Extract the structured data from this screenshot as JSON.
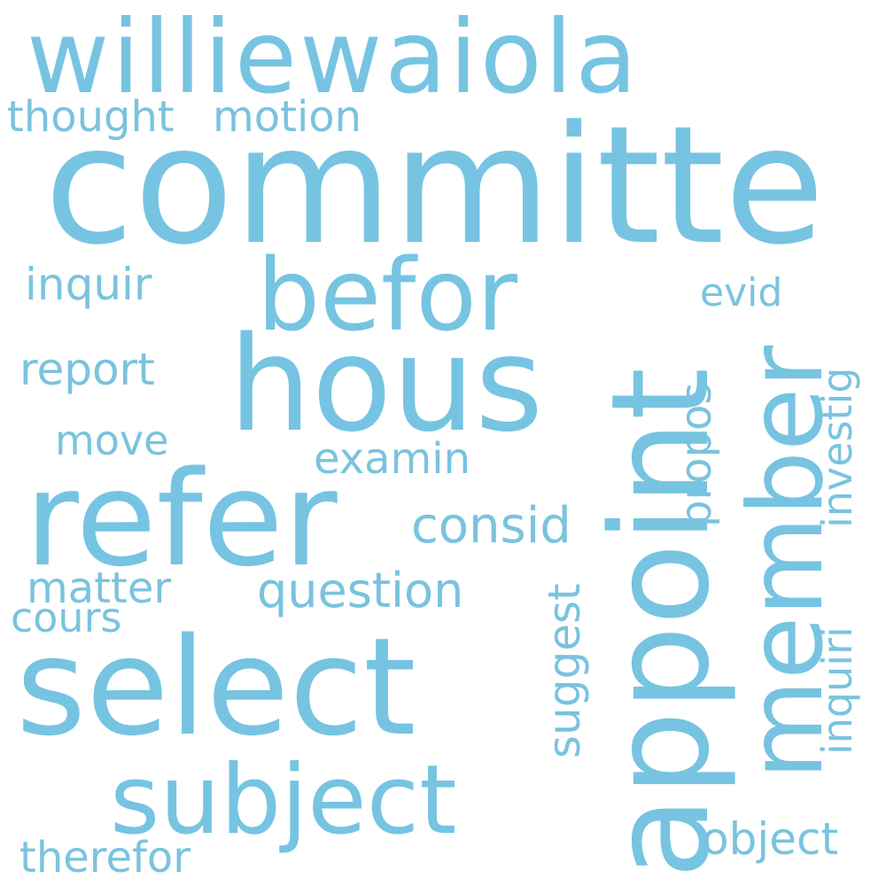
{
  "words": {
    "committe": "committe",
    "williewaiola": "williewaiola",
    "hous": "hous",
    "refer": "refer",
    "select": "select",
    "appoint": "appoint",
    "member": "member",
    "befor": "befor",
    "subject": "subject",
    "thought": "thought",
    "motion": "motion",
    "inquir": "inquir",
    "evid": "evid",
    "investig": "investig",
    "report": "report",
    "propos": "propos",
    "move": "move",
    "examin": "examin",
    "consid": "consid",
    "matter": "matter",
    "question": "question",
    "cours": "cours",
    "suggest": "suggest",
    "inquiri": "inquiri",
    "therefor": "therefor",
    "object": "object"
  },
  "colors": {
    "primary": "#76c4e2",
    "secondary": "#7ac3de",
    "background": "#ffffff"
  }
}
